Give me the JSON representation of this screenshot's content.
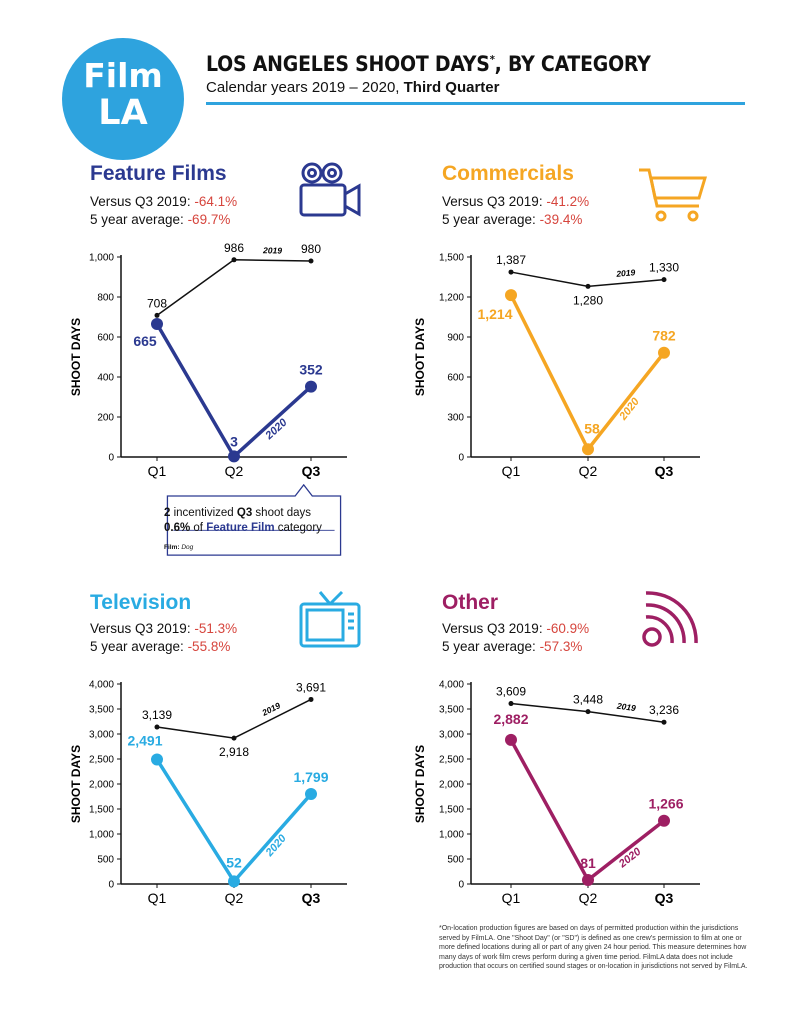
{
  "header": {
    "logo_line1": "Film",
    "logo_line2": "LA",
    "title": "LOS ANGELES SHOOT DAYS",
    "title_mark": "*",
    "title_suffix": ", BY CATEGORY",
    "subtitle_prefix": "Calendar years 2019 – 2020, ",
    "subtitle_bold": "Third Quarter"
  },
  "colors": {
    "feature": "#2b3990",
    "commercials": "#f5a623",
    "television": "#29abe2",
    "other": "#9e1f63",
    "negative": "#d6453d",
    "accent": "#2ea3de"
  },
  "panels": [
    {
      "title": "Feature Films",
      "icon": "film-camera-icon",
      "line1_label": "Versus Q3 2019: ",
      "line1_value": "-64.1%",
      "line2_label": "5 year average: ",
      "line2_value": "-69.7%"
    },
    {
      "title": "Commercials",
      "icon": "shopping-cart-icon",
      "line1_label": "Versus Q3 2019: ",
      "line1_value": "-41.2%",
      "line2_label": "5 year average: ",
      "line2_value": "-39.4%"
    },
    {
      "title": "Television",
      "icon": "television-icon",
      "line1_label": "Versus Q3 2019: ",
      "line1_value": "-51.3%",
      "line2_label": "5 year average: ",
      "line2_value": "-55.8%"
    },
    {
      "title": "Other",
      "icon": "signal-icon",
      "line1_label": "Versus Q3 2019: ",
      "line1_value": "-60.9%",
      "line2_label": "5 year average: ",
      "line2_value": "-57.3%"
    }
  ],
  "callout": {
    "count": "2",
    "text1": " incentivized ",
    "q3": "Q3",
    "text2": " shoot days",
    "pct": "0.6%",
    "text3": " of ",
    "category": "Feature Film",
    "text4": " category",
    "film_label": "Film:",
    "film_value": "Dog"
  },
  "footnote": "*On-location production figures are based on days of permitted production within the jurisdictions served by FilmLA. One \"Shoot Day\" (or \"SD\") is defined as one crew's permission to film at one or more defined locations during all or part of any given 24 hour period. This measure determines how many days of work film crews perform during a given time period. FilmLA data does not include production that occurs on certified sound stages or on-location in jurisdictions not served by FilmLA.",
  "chart_data": [
    {
      "type": "line",
      "categories": [
        "Q1",
        "Q2",
        "Q3"
      ],
      "ylabel": "SHOOT DAYS",
      "ylim": [
        0,
        1000
      ],
      "yticks": [
        0,
        200,
        400,
        600,
        800,
        1000
      ],
      "ytick_labels": [
        "0",
        "200",
        "400",
        "600",
        "800",
        "1,000"
      ],
      "series": [
        {
          "name": "2019",
          "values": [
            708,
            986,
            980
          ],
          "labels": [
            "708",
            "986",
            "980"
          ]
        },
        {
          "name": "2020",
          "values": [
            665,
            3,
            352
          ],
          "labels": [
            "665",
            "3",
            "352"
          ]
        }
      ]
    },
    {
      "type": "line",
      "categories": [
        "Q1",
        "Q2",
        "Q3"
      ],
      "ylabel": "SHOOT DAYS",
      "ylim": [
        0,
        1500
      ],
      "yticks": [
        0,
        300,
        600,
        900,
        1200,
        1500
      ],
      "ytick_labels": [
        "0",
        "300",
        "600",
        "900",
        "1,200",
        "1,500"
      ],
      "series": [
        {
          "name": "2019",
          "values": [
            1387,
            1280,
            1330
          ],
          "labels": [
            "1,387",
            "1,280",
            "1,330"
          ]
        },
        {
          "name": "2020",
          "values": [
            1214,
            58,
            782
          ],
          "labels": [
            "1,214",
            "58",
            "782"
          ]
        }
      ]
    },
    {
      "type": "line",
      "categories": [
        "Q1",
        "Q2",
        "Q3"
      ],
      "ylabel": "SHOOT DAYS",
      "ylim": [
        0,
        4000
      ],
      "yticks": [
        0,
        500,
        1000,
        1500,
        2000,
        2500,
        3000,
        3500,
        4000
      ],
      "ytick_labels": [
        "0",
        "500",
        "1,000",
        "1,500",
        "2,000",
        "2,500",
        "3,000",
        "3,500",
        "4,000"
      ],
      "series": [
        {
          "name": "2019",
          "values": [
            3139,
            2918,
            3691
          ],
          "labels": [
            "3,139",
            "2,918",
            "3,691"
          ]
        },
        {
          "name": "2020",
          "values": [
            2491,
            52,
            1799
          ],
          "labels": [
            "2,491",
            "52",
            "1,799"
          ]
        }
      ]
    },
    {
      "type": "line",
      "categories": [
        "Q1",
        "Q2",
        "Q3"
      ],
      "ylabel": "SHOOT DAYS",
      "ylim": [
        0,
        4000
      ],
      "yticks": [
        0,
        500,
        1000,
        1500,
        2000,
        2500,
        3000,
        3500,
        4000
      ],
      "ytick_labels": [
        "0",
        "500",
        "1,000",
        "1,500",
        "2,000",
        "2,500",
        "3,000",
        "3,500",
        "4,000"
      ],
      "series": [
        {
          "name": "2019",
          "values": [
            3609,
            3448,
            3236
          ],
          "labels": [
            "3,609",
            "3,448",
            "3,236"
          ]
        },
        {
          "name": "2020",
          "values": [
            2882,
            81,
            1266
          ],
          "labels": [
            "2,882",
            "81",
            "1,266"
          ]
        }
      ]
    }
  ]
}
